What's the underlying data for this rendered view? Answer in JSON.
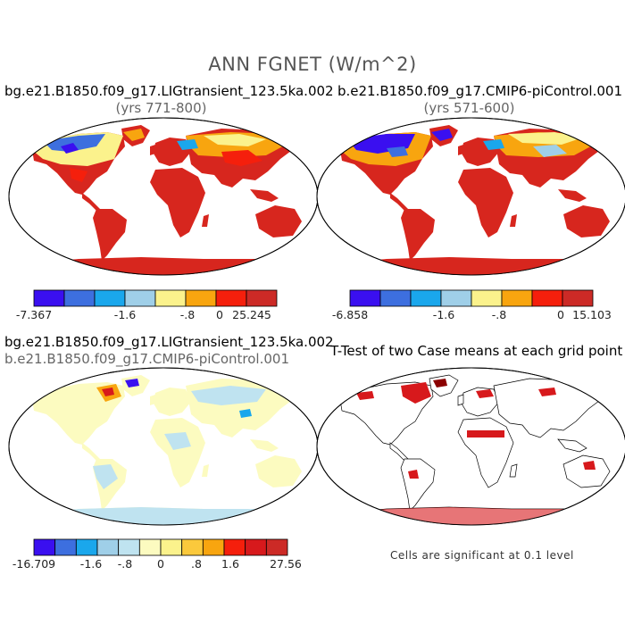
{
  "figure": {
    "title": "ANN FGNET (W/m^2)"
  },
  "panels": [
    {
      "title": "bg.e21.B1850.f09_g17.LIGtransient_123.5ka.002",
      "subtitle": "(yrs 771-800)",
      "colorbar": {
        "colors": [
          "#3a0ff0",
          "#3d6fdf",
          "#1aa7ec",
          "#9fcfe8",
          "#fbf28c",
          "#f8a50f",
          "#f51f0c",
          "#cc2a26"
        ],
        "tick_labels": [
          "-7.367",
          "-1.6",
          "-.8",
          "0",
          "25.245"
        ]
      }
    },
    {
      "title": "b.e21.B1850.f09_g17.CMIP6-piControl.001",
      "subtitle": "(yrs 571-600)",
      "colorbar": {
        "colors": [
          "#3a0ff0",
          "#3d6fdf",
          "#1aa7ec",
          "#9fcfe8",
          "#fbf28c",
          "#f8a50f",
          "#f51f0c",
          "#cc2a26"
        ],
        "tick_labels": [
          "-6.858",
          "-1.6",
          "-.8",
          "0",
          "15.103"
        ]
      }
    },
    {
      "title": "bg.e21.B1850.f09_g17.LIGtransient_123.5ka.002",
      "subtitle": "b.e21.B1850.f09_g17.CMIP6-piControl.001",
      "colorbar": {
        "colors": [
          "#3a0ff0",
          "#3d6fdf",
          "#1aa7ec",
          "#9fcfe8",
          "#bfe3f0",
          "#fcfbc0",
          "#fbf28c",
          "#fbc93c",
          "#f8a50f",
          "#f51f0c",
          "#d7191c",
          "#cc2a26"
        ],
        "tick_labels": [
          "-16.709",
          "-1.6",
          "-.8",
          "0",
          ".8",
          "1.6",
          "27.56"
        ]
      }
    },
    {
      "title": "T-Test of two Case means at each grid point",
      "note": "Cells are significant at 0.1 level"
    }
  ]
}
